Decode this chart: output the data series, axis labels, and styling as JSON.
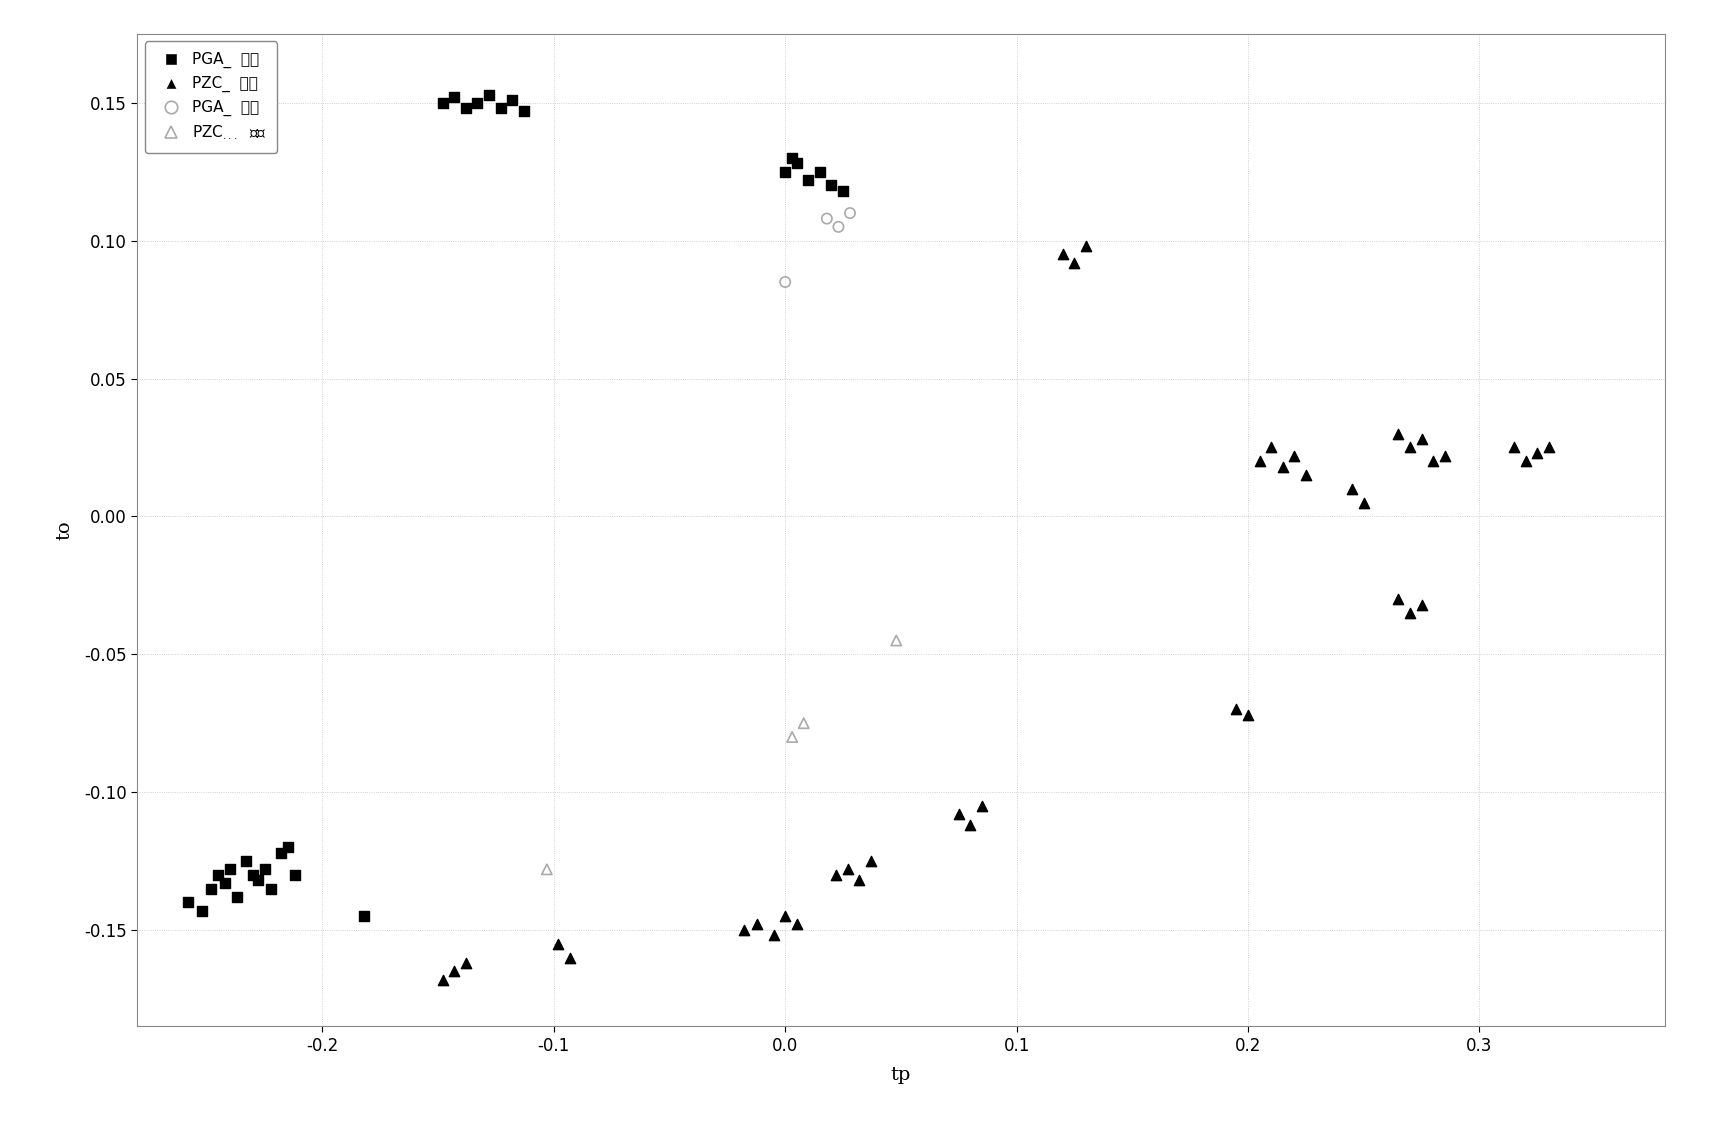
{
  "title": "",
  "xlabel": "tp",
  "ylabel": "to",
  "xlim": [
    -0.28,
    0.38
  ],
  "ylim": [
    -0.185,
    0.175
  ],
  "xticks": [
    -0.2,
    -0.1,
    0.0,
    0.1,
    0.2,
    0.3
  ],
  "yticks": [
    -0.15,
    -0.1,
    -0.05,
    0.0,
    0.05,
    0.1,
    0.15
  ],
  "background_color": "#ffffff",
  "PGA_train": [
    [
      -0.258,
      -0.14
    ],
    [
      -0.252,
      -0.143
    ],
    [
      -0.248,
      -0.135
    ],
    [
      -0.245,
      -0.13
    ],
    [
      -0.242,
      -0.133
    ],
    [
      -0.24,
      -0.128
    ],
    [
      -0.237,
      -0.138
    ],
    [
      -0.233,
      -0.125
    ],
    [
      -0.23,
      -0.13
    ],
    [
      -0.228,
      -0.132
    ],
    [
      -0.225,
      -0.128
    ],
    [
      -0.222,
      -0.135
    ],
    [
      -0.218,
      -0.122
    ],
    [
      -0.215,
      -0.12
    ],
    [
      -0.212,
      -0.13
    ],
    [
      -0.182,
      -0.145
    ],
    [
      -0.148,
      0.15
    ],
    [
      -0.143,
      0.152
    ],
    [
      -0.138,
      0.148
    ],
    [
      -0.133,
      0.15
    ],
    [
      -0.128,
      0.153
    ],
    [
      -0.123,
      0.148
    ],
    [
      -0.118,
      0.151
    ],
    [
      -0.113,
      0.147
    ],
    [
      0.0,
      0.125
    ],
    [
      0.005,
      0.128
    ],
    [
      0.01,
      0.122
    ],
    [
      0.015,
      0.125
    ],
    [
      0.02,
      0.12
    ],
    [
      0.025,
      0.118
    ],
    [
      0.003,
      0.13
    ]
  ],
  "PZC_train": [
    [
      -0.148,
      -0.168
    ],
    [
      -0.143,
      -0.165
    ],
    [
      -0.138,
      -0.162
    ],
    [
      -0.098,
      -0.155
    ],
    [
      -0.093,
      -0.16
    ],
    [
      -0.018,
      -0.15
    ],
    [
      -0.012,
      -0.148
    ],
    [
      -0.005,
      -0.152
    ],
    [
      0.0,
      -0.145
    ],
    [
      0.005,
      -0.148
    ],
    [
      0.022,
      -0.13
    ],
    [
      0.027,
      -0.128
    ],
    [
      0.032,
      -0.132
    ],
    [
      0.037,
      -0.125
    ],
    [
      0.075,
      -0.108
    ],
    [
      0.08,
      -0.112
    ],
    [
      0.085,
      -0.105
    ],
    [
      0.12,
      0.095
    ],
    [
      0.125,
      0.092
    ],
    [
      0.13,
      0.098
    ],
    [
      0.195,
      -0.07
    ],
    [
      0.2,
      -0.072
    ],
    [
      0.205,
      0.02
    ],
    [
      0.21,
      0.025
    ],
    [
      0.215,
      0.018
    ],
    [
      0.22,
      0.022
    ],
    [
      0.225,
      0.015
    ],
    [
      0.265,
      0.03
    ],
    [
      0.27,
      0.025
    ],
    [
      0.275,
      0.028
    ],
    [
      0.28,
      0.02
    ],
    [
      0.285,
      0.022
    ],
    [
      0.315,
      0.025
    ],
    [
      0.32,
      0.02
    ],
    [
      0.325,
      0.023
    ],
    [
      0.33,
      0.025
    ],
    [
      0.265,
      -0.03
    ],
    [
      0.27,
      -0.035
    ],
    [
      0.275,
      -0.032
    ],
    [
      0.245,
      0.01
    ],
    [
      0.25,
      0.005
    ]
  ],
  "PGA_pred": [
    [
      0.0,
      0.085
    ],
    [
      0.018,
      0.108
    ],
    [
      0.023,
      0.105
    ],
    [
      0.028,
      0.11
    ]
  ],
  "PZC_pred": [
    [
      -0.103,
      -0.128
    ],
    [
      0.003,
      -0.08
    ],
    [
      0.008,
      -0.075
    ],
    [
      0.048,
      -0.045
    ]
  ],
  "marker_size_train": 55,
  "marker_size_pred": 55,
  "legend_fontsize": 11,
  "tick_fontsize": 12,
  "label_fontsize": 14
}
